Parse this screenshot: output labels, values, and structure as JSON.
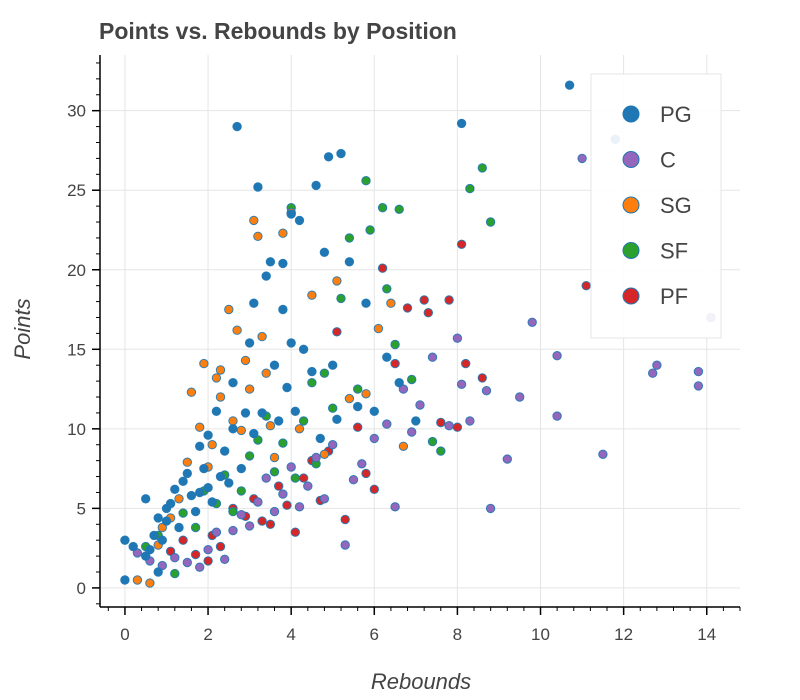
{
  "chart_data": {
    "type": "scatter",
    "title": "Points vs. Rebounds by Position",
    "xlabel": "Rebounds",
    "ylabel": "Points",
    "xlim": [
      -0.6,
      14.8
    ],
    "ylim": [
      -1.2,
      33.5
    ],
    "xticks": [
      "0",
      "2",
      "4",
      "6",
      "8",
      "10",
      "12",
      "14"
    ],
    "yticks": [
      "0",
      "5",
      "10",
      "15",
      "20",
      "25",
      "30"
    ],
    "grid": true,
    "legend": "top-right",
    "colors": {
      "PG": "#1f77b4",
      "C": "#9467bd",
      "SG": "#ff7f0e",
      "SF": "#2ca02c",
      "PF": "#d62728"
    },
    "series": [
      {
        "name": "PG",
        "color": "#1f77b4",
        "points": [
          [
            0.0,
            3.0
          ],
          [
            0.0,
            0.5
          ],
          [
            0.2,
            2.6
          ],
          [
            0.5,
            2.0
          ],
          [
            0.5,
            5.6
          ],
          [
            0.6,
            2.4
          ],
          [
            0.7,
            3.3
          ],
          [
            0.8,
            1.0
          ],
          [
            0.8,
            4.4
          ],
          [
            0.9,
            3.0
          ],
          [
            1.0,
            4.2
          ],
          [
            1.0,
            5.0
          ],
          [
            1.1,
            5.3
          ],
          [
            1.2,
            6.2
          ],
          [
            1.3,
            3.8
          ],
          [
            1.4,
            6.7
          ],
          [
            1.5,
            7.2
          ],
          [
            1.6,
            5.8
          ],
          [
            1.7,
            4.8
          ],
          [
            1.8,
            6.0
          ],
          [
            1.8,
            8.9
          ],
          [
            1.9,
            7.5
          ],
          [
            2.0,
            6.3
          ],
          [
            2.0,
            9.6
          ],
          [
            2.1,
            5.4
          ],
          [
            2.2,
            11.1
          ],
          [
            2.3,
            7.0
          ],
          [
            2.4,
            8.6
          ],
          [
            2.5,
            6.6
          ],
          [
            2.6,
            12.9
          ],
          [
            2.6,
            10.0
          ],
          [
            2.7,
            29.0
          ],
          [
            2.8,
            7.5
          ],
          [
            2.9,
            11.0
          ],
          [
            3.0,
            15.4
          ],
          [
            3.1,
            9.7
          ],
          [
            3.1,
            17.9
          ],
          [
            3.2,
            25.2
          ],
          [
            3.3,
            11.0
          ],
          [
            3.4,
            19.6
          ],
          [
            3.5,
            20.5
          ],
          [
            3.6,
            14.0
          ],
          [
            3.7,
            10.5
          ],
          [
            3.8,
            20.4
          ],
          [
            3.8,
            17.5
          ],
          [
            3.9,
            12.6
          ],
          [
            4.0,
            23.5
          ],
          [
            4.0,
            15.4
          ],
          [
            4.1,
            11.1
          ],
          [
            4.2,
            23.1
          ],
          [
            4.3,
            15.0
          ],
          [
            4.5,
            13.6
          ],
          [
            4.6,
            25.3
          ],
          [
            4.7,
            9.4
          ],
          [
            4.8,
            21.1
          ],
          [
            4.9,
            27.1
          ],
          [
            5.0,
            14.0
          ],
          [
            5.1,
            10.6
          ],
          [
            5.2,
            27.3
          ],
          [
            5.4,
            20.5
          ],
          [
            5.6,
            11.4
          ],
          [
            5.8,
            17.9
          ],
          [
            6.0,
            11.1
          ],
          [
            6.3,
            14.5
          ],
          [
            6.6,
            12.9
          ],
          [
            7.0,
            10.5
          ],
          [
            8.1,
            29.2
          ],
          [
            10.7,
            31.6
          ],
          [
            11.8,
            28.2
          ]
        ]
      },
      {
        "name": "C",
        "color": "#9467bd",
        "points": [
          [
            0.3,
            2.2
          ],
          [
            0.6,
            1.7
          ],
          [
            0.9,
            1.4
          ],
          [
            1.2,
            1.9
          ],
          [
            1.5,
            1.6
          ],
          [
            1.8,
            1.3
          ],
          [
            2.0,
            2.4
          ],
          [
            2.2,
            3.5
          ],
          [
            2.4,
            1.8
          ],
          [
            2.6,
            3.6
          ],
          [
            2.8,
            4.6
          ],
          [
            3.0,
            3.9
          ],
          [
            3.2,
            5.4
          ],
          [
            3.4,
            6.9
          ],
          [
            3.6,
            4.8
          ],
          [
            3.8,
            5.9
          ],
          [
            4.0,
            7.6
          ],
          [
            4.2,
            5.1
          ],
          [
            4.4,
            6.4
          ],
          [
            4.6,
            8.2
          ],
          [
            4.8,
            5.6
          ],
          [
            5.0,
            9.0
          ],
          [
            5.3,
            2.7
          ],
          [
            5.5,
            6.8
          ],
          [
            5.7,
            7.8
          ],
          [
            6.0,
            9.4
          ],
          [
            6.3,
            10.3
          ],
          [
            6.5,
            5.1
          ],
          [
            6.7,
            12.5
          ],
          [
            6.9,
            9.8
          ],
          [
            7.1,
            11.5
          ],
          [
            7.4,
            14.5
          ],
          [
            7.8,
            10.2
          ],
          [
            8.0,
            15.7
          ],
          [
            8.1,
            12.8
          ],
          [
            8.3,
            10.5
          ],
          [
            8.7,
            12.4
          ],
          [
            8.8,
            5.0
          ],
          [
            9.2,
            8.1
          ],
          [
            9.5,
            12.0
          ],
          [
            9.8,
            16.7
          ],
          [
            10.4,
            14.6
          ],
          [
            10.4,
            10.8
          ],
          [
            11.0,
            27.0
          ],
          [
            11.5,
            8.4
          ],
          [
            12.7,
            13.5
          ],
          [
            12.8,
            14.0
          ],
          [
            13.8,
            13.6
          ],
          [
            13.8,
            12.7
          ],
          [
            14.1,
            17.0
          ]
        ]
      },
      {
        "name": "SG",
        "color": "#ff7f0e",
        "points": [
          [
            0.3,
            0.5
          ],
          [
            0.6,
            0.3
          ],
          [
            0.8,
            2.7
          ],
          [
            0.9,
            3.8
          ],
          [
            1.1,
            4.4
          ],
          [
            1.3,
            5.6
          ],
          [
            1.5,
            7.9
          ],
          [
            1.6,
            12.3
          ],
          [
            1.8,
            10.1
          ],
          [
            1.9,
            14.1
          ],
          [
            2.0,
            7.6
          ],
          [
            2.1,
            9.0
          ],
          [
            2.2,
            13.2
          ],
          [
            2.3,
            12.0
          ],
          [
            2.3,
            13.7
          ],
          [
            2.5,
            17.5
          ],
          [
            2.6,
            10.5
          ],
          [
            2.7,
            16.2
          ],
          [
            2.8,
            9.9
          ],
          [
            2.9,
            14.3
          ],
          [
            3.0,
            12.5
          ],
          [
            3.1,
            23.1
          ],
          [
            3.2,
            22.1
          ],
          [
            3.3,
            15.8
          ],
          [
            3.4,
            13.5
          ],
          [
            3.5,
            10.2
          ],
          [
            3.6,
            8.2
          ],
          [
            3.8,
            22.3
          ],
          [
            4.0,
            23.6
          ],
          [
            4.2,
            10.0
          ],
          [
            4.5,
            18.4
          ],
          [
            4.8,
            8.4
          ],
          [
            5.1,
            19.3
          ],
          [
            5.4,
            11.9
          ],
          [
            5.8,
            12.2
          ],
          [
            6.1,
            16.3
          ],
          [
            6.4,
            17.9
          ],
          [
            6.7,
            8.9
          ]
        ]
      },
      {
        "name": "SF",
        "color": "#2ca02c",
        "points": [
          [
            0.5,
            2.6
          ],
          [
            0.8,
            3.3
          ],
          [
            1.2,
            0.9
          ],
          [
            1.4,
            4.7
          ],
          [
            1.7,
            3.8
          ],
          [
            1.9,
            6.1
          ],
          [
            2.2,
            5.3
          ],
          [
            2.4,
            7.1
          ],
          [
            2.6,
            4.8
          ],
          [
            2.8,
            6.1
          ],
          [
            3.0,
            8.3
          ],
          [
            3.2,
            9.3
          ],
          [
            3.4,
            10.8
          ],
          [
            3.6,
            7.3
          ],
          [
            3.8,
            9.1
          ],
          [
            4.0,
            23.9
          ],
          [
            4.1,
            6.9
          ],
          [
            4.3,
            10.5
          ],
          [
            4.5,
            12.9
          ],
          [
            4.6,
            7.8
          ],
          [
            4.8,
            13.5
          ],
          [
            5.0,
            11.3
          ],
          [
            5.2,
            18.2
          ],
          [
            5.4,
            22.0
          ],
          [
            5.6,
            12.5
          ],
          [
            5.8,
            25.6
          ],
          [
            5.9,
            22.5
          ],
          [
            6.2,
            23.9
          ],
          [
            6.3,
            18.8
          ],
          [
            6.5,
            15.3
          ],
          [
            6.6,
            23.8
          ],
          [
            6.9,
            13.1
          ],
          [
            7.4,
            9.2
          ],
          [
            7.6,
            8.6
          ],
          [
            8.3,
            25.1
          ],
          [
            8.6,
            26.4
          ],
          [
            8.8,
            23.0
          ]
        ]
      },
      {
        "name": "PF",
        "color": "#d62728",
        "points": [
          [
            1.1,
            2.3
          ],
          [
            1.4,
            3.0
          ],
          [
            1.7,
            2.1
          ],
          [
            2.0,
            1.7
          ],
          [
            2.1,
            3.3
          ],
          [
            2.3,
            2.6
          ],
          [
            2.6,
            5.0
          ],
          [
            2.9,
            4.5
          ],
          [
            3.1,
            5.6
          ],
          [
            3.3,
            4.2
          ],
          [
            3.5,
            4.0
          ],
          [
            3.7,
            6.4
          ],
          [
            3.9,
            5.2
          ],
          [
            4.1,
            3.5
          ],
          [
            4.3,
            6.9
          ],
          [
            4.5,
            8.0
          ],
          [
            4.7,
            5.5
          ],
          [
            4.9,
            8.6
          ],
          [
            5.1,
            16.1
          ],
          [
            5.3,
            4.3
          ],
          [
            5.6,
            10.1
          ],
          [
            5.8,
            7.2
          ],
          [
            6.0,
            6.2
          ],
          [
            6.2,
            20.1
          ],
          [
            6.5,
            14.1
          ],
          [
            6.8,
            17.6
          ],
          [
            7.2,
            18.1
          ],
          [
            7.3,
            17.3
          ],
          [
            7.6,
            10.4
          ],
          [
            7.8,
            18.1
          ],
          [
            8.0,
            10.1
          ],
          [
            8.1,
            21.6
          ],
          [
            8.2,
            14.1
          ],
          [
            8.6,
            13.2
          ],
          [
            11.1,
            19.0
          ]
        ]
      }
    ]
  }
}
